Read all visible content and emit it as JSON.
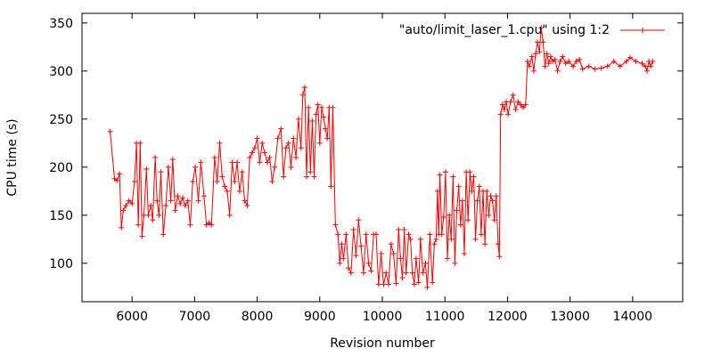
{
  "chart_data": {
    "type": "line",
    "title": "",
    "xlabel": "Revision number",
    "ylabel": "CPU time (s)",
    "xlim": [
      5200,
      14800
    ],
    "ylim": [
      60,
      360
    ],
    "xticks": [
      6000,
      7000,
      8000,
      9000,
      10000,
      11000,
      12000,
      13000,
      14000
    ],
    "yticks": [
      100,
      150,
      200,
      250,
      300,
      350
    ],
    "grid": false,
    "legend_position": "top-right",
    "series": [
      {
        "name": "\"auto/limit_laser_1.cpu\" using 1:2",
        "color": "#ff0000",
        "marker": "plus",
        "points": [
          [
            5650,
            237
          ],
          [
            5720,
            188
          ],
          [
            5760,
            186
          ],
          [
            5800,
            193
          ],
          [
            5830,
            137
          ],
          [
            5860,
            155
          ],
          [
            5900,
            160
          ],
          [
            5950,
            165
          ],
          [
            6000,
            162
          ],
          [
            6040,
            185
          ],
          [
            6070,
            225
          ],
          [
            6100,
            140
          ],
          [
            6130,
            225
          ],
          [
            6160,
            128
          ],
          [
            6190,
            150
          ],
          [
            6230,
            198
          ],
          [
            6260,
            150
          ],
          [
            6300,
            160
          ],
          [
            6330,
            145
          ],
          [
            6370,
            210
          ],
          [
            6400,
            165
          ],
          [
            6430,
            150
          ],
          [
            6460,
            195
          ],
          [
            6500,
            130
          ],
          [
            6540,
            160
          ],
          [
            6580,
            200
          ],
          [
            6620,
            165
          ],
          [
            6650,
            208
          ],
          [
            6690,
            155
          ],
          [
            6730,
            170
          ],
          [
            6770,
            162
          ],
          [
            6810,
            168
          ],
          [
            6850,
            160
          ],
          [
            6890,
            165
          ],
          [
            6930,
            140
          ],
          [
            6970,
            185
          ],
          [
            7010,
            200
          ],
          [
            7060,
            165
          ],
          [
            7100,
            205
          ],
          [
            7150,
            170
          ],
          [
            7190,
            140
          ],
          [
            7230,
            142
          ],
          [
            7270,
            140
          ],
          [
            7320,
            210
          ],
          [
            7360,
            185
          ],
          [
            7400,
            225
          ],
          [
            7440,
            190
          ],
          [
            7480,
            180
          ],
          [
            7520,
            175
          ],
          [
            7560,
            150
          ],
          [
            7600,
            205
          ],
          [
            7640,
            185
          ],
          [
            7680,
            205
          ],
          [
            7720,
            175
          ],
          [
            7760,
            195
          ],
          [
            7800,
            165
          ],
          [
            7840,
            160
          ],
          [
            7880,
            210
          ],
          [
            7920,
            215
          ],
          [
            7960,
            220
          ],
          [
            8000,
            230
          ],
          [
            8040,
            205
          ],
          [
            8080,
            225
          ],
          [
            8120,
            215
          ],
          [
            8160,
            205
          ],
          [
            8200,
            210
          ],
          [
            8240,
            185
          ],
          [
            8280,
            200
          ],
          [
            8330,
            230
          ],
          [
            8380,
            240
          ],
          [
            8420,
            190
          ],
          [
            8460,
            220
          ],
          [
            8500,
            225
          ],
          [
            8540,
            200
          ],
          [
            8580,
            230
          ],
          [
            8620,
            210
          ],
          [
            8660,
            250
          ],
          [
            8700,
            220
          ],
          [
            8730,
            275
          ],
          [
            8760,
            283
          ],
          [
            8790,
            190
          ],
          [
            8820,
            262
          ],
          [
            8850,
            195
          ],
          [
            8880,
            248
          ],
          [
            8910,
            190
          ],
          [
            8940,
            255
          ],
          [
            8970,
            265
          ],
          [
            9000,
            225
          ],
          [
            9030,
            262
          ],
          [
            9060,
            252
          ],
          [
            9090,
            240
          ],
          [
            9120,
            230
          ],
          [
            9150,
            262
          ],
          [
            9180,
            180
          ],
          [
            9210,
            262
          ],
          [
            9250,
            140
          ],
          [
            9290,
            130
          ],
          [
            9320,
            100
          ],
          [
            9350,
            120
          ],
          [
            9380,
            105
          ],
          [
            9420,
            130
          ],
          [
            9460,
            95
          ],
          [
            9500,
            90
          ],
          [
            9540,
            135
          ],
          [
            9580,
            108
          ],
          [
            9620,
            145
          ],
          [
            9660,
            118
          ],
          [
            9700,
            90
          ],
          [
            9740,
            130
          ],
          [
            9780,
            100
          ],
          [
            9820,
            92
          ],
          [
            9860,
            130
          ],
          [
            9900,
            130
          ],
          [
            9940,
            78
          ],
          [
            9980,
            110
          ],
          [
            10020,
            78
          ],
          [
            10060,
            90
          ],
          [
            10100,
            78
          ],
          [
            10140,
            120
          ],
          [
            10180,
            110
          ],
          [
            10220,
            79
          ],
          [
            10260,
            135
          ],
          [
            10290,
            105
          ],
          [
            10320,
            85
          ],
          [
            10350,
            135
          ],
          [
            10380,
            90
          ],
          [
            10420,
            130
          ],
          [
            10450,
            125
          ],
          [
            10480,
            90
          ],
          [
            10510,
            78
          ],
          [
            10540,
            105
          ],
          [
            10580,
            80
          ],
          [
            10610,
            125
          ],
          [
            10650,
            90
          ],
          [
            10690,
            100
          ],
          [
            10720,
            75
          ],
          [
            10760,
            130
          ],
          [
            10800,
            80
          ],
          [
            10830,
            120
          ],
          [
            10860,
            125
          ],
          [
            10880,
            175
          ],
          [
            10900,
            130
          ],
          [
            10920,
            192
          ],
          [
            10950,
            130
          ],
          [
            10980,
            148
          ],
          [
            11010,
            195
          ],
          [
            11040,
            105
          ],
          [
            11070,
            150
          ],
          [
            11100,
            125
          ],
          [
            11130,
            190
          ],
          [
            11160,
            100
          ],
          [
            11190,
            155
          ],
          [
            11220,
            180
          ],
          [
            11250,
            140
          ],
          [
            11280,
            165
          ],
          [
            11310,
            110
          ],
          [
            11340,
            195
          ],
          [
            11370,
            145
          ],
          [
            11400,
            195
          ],
          [
            11430,
            175
          ],
          [
            11460,
            190
          ],
          [
            11490,
            125
          ],
          [
            11520,
            165
          ],
          [
            11550,
            180
          ],
          [
            11580,
            130
          ],
          [
            11610,
            175
          ],
          [
            11640,
            120
          ],
          [
            11670,
            175
          ],
          [
            11700,
            150
          ],
          [
            11730,
            170
          ],
          [
            11760,
            165
          ],
          [
            11790,
            145
          ],
          [
            11820,
            170
          ],
          [
            11850,
            120
          ],
          [
            11870,
            107
          ],
          [
            11890,
            255
          ],
          [
            11920,
            265
          ],
          [
            11950,
            260
          ],
          [
            11980,
            268
          ],
          [
            12010,
            255
          ],
          [
            12050,
            268
          ],
          [
            12090,
            275
          ],
          [
            12130,
            260
          ],
          [
            12170,
            268
          ],
          [
            12210,
            265
          ],
          [
            12250,
            262
          ],
          [
            12290,
            265
          ],
          [
            12320,
            310
          ],
          [
            12350,
            305
          ],
          [
            12390,
            315
          ],
          [
            12420,
            300
          ],
          [
            12450,
            318
          ],
          [
            12480,
            330
          ],
          [
            12510,
            320
          ],
          [
            12540,
            345
          ],
          [
            12570,
            330
          ],
          [
            12600,
            305
          ],
          [
            12630,
            318
          ],
          [
            12660,
            308
          ],
          [
            12690,
            315
          ],
          [
            12720,
            310
          ],
          [
            12760,
            312
          ],
          [
            12800,
            300
          ],
          [
            12840,
            310
          ],
          [
            12880,
            315
          ],
          [
            12930,
            308
          ],
          [
            12980,
            310
          ],
          [
            13050,
            305
          ],
          [
            13100,
            310
          ],
          [
            13150,
            312
          ],
          [
            13200,
            302
          ],
          [
            13300,
            305
          ],
          [
            13400,
            302
          ],
          [
            13500,
            303
          ],
          [
            13600,
            305
          ],
          [
            13700,
            310
          ],
          [
            13800,
            305
          ],
          [
            13900,
            310
          ],
          [
            13960,
            314
          ],
          [
            14050,
            310
          ],
          [
            14150,
            308
          ],
          [
            14200,
            305
          ],
          [
            14230,
            300
          ],
          [
            14260,
            310
          ],
          [
            14290,
            305
          ],
          [
            14320,
            310
          ]
        ]
      }
    ]
  }
}
